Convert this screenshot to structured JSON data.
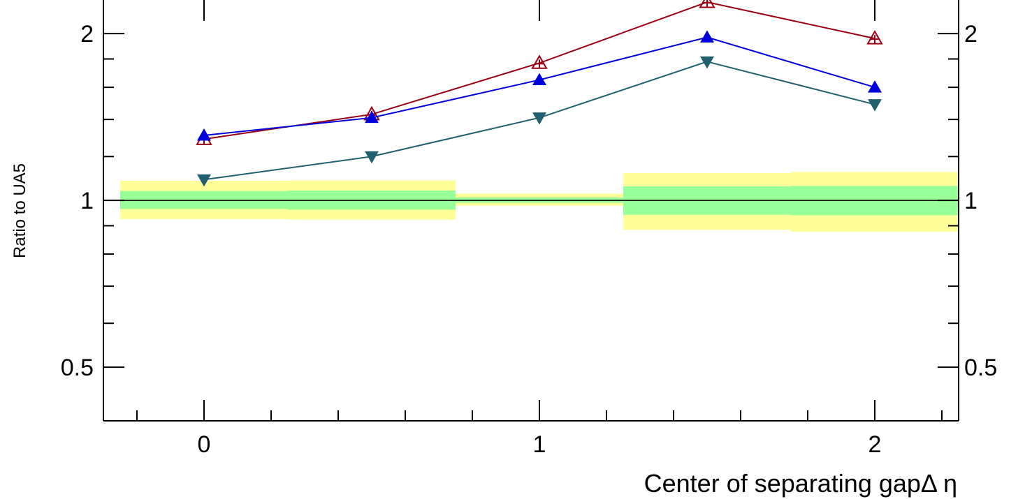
{
  "chart_data": {
    "type": "line",
    "xlabel": "Center of separating gapΔ η",
    "ylabel": "Ratio to UA5",
    "xlim": [
      -0.3,
      2.25
    ],
    "ylim": [
      0.4,
      2.3
    ],
    "y_scale": "log",
    "grid": false,
    "x_ticks": [
      0,
      1,
      2
    ],
    "x_tick_labels": [
      "0",
      "1",
      "2"
    ],
    "y_ticks": [
      0.5,
      1,
      2
    ],
    "y_tick_labels": [
      "0.5",
      "1",
      "2"
    ],
    "reference_line": 1,
    "x": [
      0,
      0.5,
      1,
      1.5,
      2
    ],
    "series": [
      {
        "values": [
          1.29,
          1.43,
          1.77,
          2.28,
          1.96
        ],
        "marker": "open-triangle-up",
        "color": "#990011"
      },
      {
        "values": [
          1.31,
          1.41,
          1.65,
          1.97,
          1.6
        ],
        "marker": "filled-triangle-up",
        "color": "#0000dd"
      },
      {
        "values": [
          1.09,
          1.2,
          1.41,
          1.78,
          1.49
        ],
        "marker": "filled-triangle-down",
        "color": "#206070"
      }
    ],
    "bands": [
      {
        "x_range": [
          -0.25,
          0.25
        ],
        "inner": [
          0.965,
          1.04
        ],
        "outer": [
          0.925,
          1.085
        ]
      },
      {
        "x_range": [
          0.25,
          0.75
        ],
        "inner": [
          0.962,
          1.042
        ],
        "outer": [
          0.923,
          1.086
        ]
      },
      {
        "x_range": [
          0.75,
          1.25
        ],
        "inner": [
          0.99,
          1.012
        ],
        "outer": [
          0.978,
          1.028
        ]
      },
      {
        "x_range": [
          1.25,
          1.75
        ],
        "inner": [
          0.942,
          1.06
        ],
        "outer": [
          0.885,
          1.12
        ]
      },
      {
        "x_range": [
          1.75,
          2.25
        ],
        "inner": [
          0.94,
          1.062
        ],
        "outer": [
          0.878,
          1.125
        ]
      }
    ],
    "band_colors": {
      "inner": "#99ff99",
      "outer": "#ffff99"
    }
  }
}
